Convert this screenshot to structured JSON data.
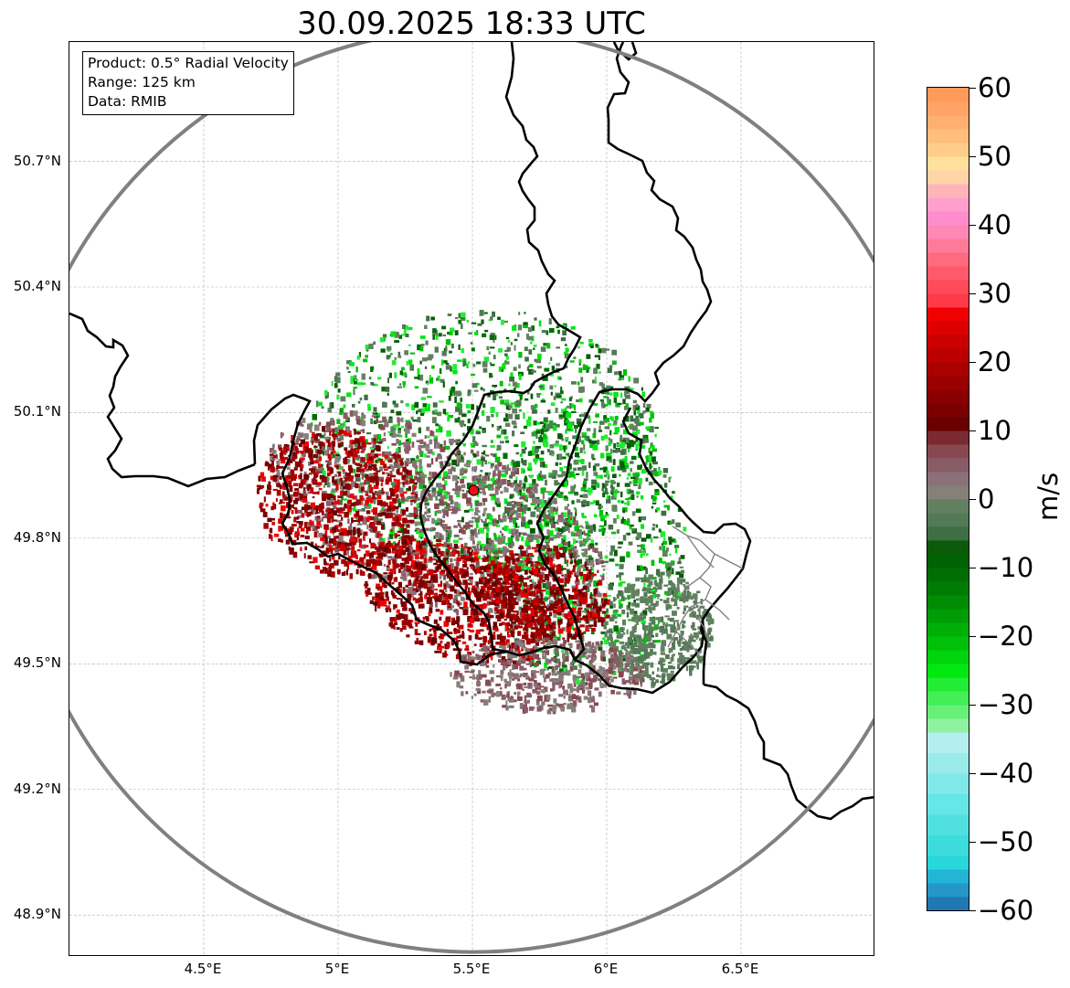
{
  "title": "30.09.2025 18:33 UTC",
  "info_box": {
    "line1": "Product: 0.5° Radial Velocity",
    "line2": "Range: 125 km",
    "line3": "Data: RMIB"
  },
  "map": {
    "extent": {
      "lon": [
        4.0,
        7.0
      ],
      "lat": [
        48.8,
        50.985
      ]
    },
    "radar_site": {
      "lon": 5.505,
      "lat": 49.914
    },
    "latitude_ticks": [
      {
        "value": 50.7,
        "label": "50.7°N"
      },
      {
        "value": 50.4,
        "label": "50.4°N"
      },
      {
        "value": 50.1,
        "label": "50.1°N"
      },
      {
        "value": 49.8,
        "label": "49.8°N"
      },
      {
        "value": 49.5,
        "label": "49.5°N"
      },
      {
        "value": 49.2,
        "label": "49.2°N"
      },
      {
        "value": 48.9,
        "label": "48.9°N"
      }
    ],
    "longitude_ticks": [
      {
        "value": 4.5,
        "label": "4.5°E"
      },
      {
        "value": 5.0,
        "label": "5°E"
      },
      {
        "value": 5.5,
        "label": "5.5°E"
      },
      {
        "value": 6.0,
        "label": "6°E"
      },
      {
        "value": 6.5,
        "label": "6.5°E"
      }
    ],
    "range_ring_color": "#808080",
    "border_color": "#000000",
    "sub_border_color": "#808080"
  },
  "colorbar": {
    "unit": "m/s",
    "min": -60,
    "max": 60,
    "ticks": [
      {
        "value": 60,
        "label": "60"
      },
      {
        "value": 50,
        "label": "50"
      },
      {
        "value": 40,
        "label": "40"
      },
      {
        "value": 30,
        "label": "30"
      },
      {
        "value": 20,
        "label": "20"
      },
      {
        "value": 10,
        "label": "10"
      },
      {
        "value": 0,
        "label": "0"
      },
      {
        "value": -10,
        "label": "−10"
      },
      {
        "value": -20,
        "label": "−20"
      },
      {
        "value": -30,
        "label": "−30"
      },
      {
        "value": -40,
        "label": "−40"
      },
      {
        "value": -50,
        "label": "−50"
      },
      {
        "value": -60,
        "label": "−60"
      }
    ],
    "color_stops": [
      {
        "from": -60,
        "to": -58,
        "color": "#1f77b4"
      },
      {
        "from": -58,
        "to": -56,
        "color": "#2596c8"
      },
      {
        "from": -56,
        "to": -54,
        "color": "#22b5d6"
      },
      {
        "from": -54,
        "to": -52,
        "color": "#28d6dc"
      },
      {
        "from": -52,
        "to": -49,
        "color": "#3cdcdc"
      },
      {
        "from": -49,
        "to": -46,
        "color": "#50e0e0"
      },
      {
        "from": -46,
        "to": -43,
        "color": "#66e6e6"
      },
      {
        "from": -43,
        "to": -40,
        "color": "#80e8e8"
      },
      {
        "from": -40,
        "to": -37,
        "color": "#9aeaea"
      },
      {
        "from": -37,
        "to": -34,
        "color": "#b4eeee"
      },
      {
        "from": -34,
        "to": -32,
        "color": "#8ef2a0"
      },
      {
        "from": -32,
        "to": -30,
        "color": "#66f07a"
      },
      {
        "from": -30,
        "to": -28,
        "color": "#44ee55"
      },
      {
        "from": -28,
        "to": -26,
        "color": "#22ec33"
      },
      {
        "from": -26,
        "to": -24,
        "color": "#00e810"
      },
      {
        "from": -24,
        "to": -22,
        "color": "#00d40c"
      },
      {
        "from": -22,
        "to": -20,
        "color": "#00c00a"
      },
      {
        "from": -20,
        "to": -18,
        "color": "#00ae08"
      },
      {
        "from": -18,
        "to": -16,
        "color": "#009c06"
      },
      {
        "from": -16,
        "to": -14,
        "color": "#008c05"
      },
      {
        "from": -14,
        "to": -12,
        "color": "#007c04"
      },
      {
        "from": -12,
        "to": -10,
        "color": "#006e03"
      },
      {
        "from": -10,
        "to": -8,
        "color": "#006202"
      },
      {
        "from": -8,
        "to": -6,
        "color": "#0a5a0a"
      },
      {
        "from": -6,
        "to": -4,
        "color": "#3f6e44"
      },
      {
        "from": -4,
        "to": -2,
        "color": "#527a56"
      },
      {
        "from": -2,
        "to": 0,
        "color": "#62805f"
      },
      {
        "from": 0,
        "to": 2,
        "color": "#86807a"
      },
      {
        "from": 2,
        "to": 4,
        "color": "#8a7078"
      },
      {
        "from": 4,
        "to": 6,
        "color": "#885c66"
      },
      {
        "from": 6,
        "to": 8,
        "color": "#884850"
      },
      {
        "from": 8,
        "to": 10,
        "color": "#7a2a30"
      },
      {
        "from": 10,
        "to": 12,
        "color": "#6a0000"
      },
      {
        "from": 12,
        "to": 14,
        "color": "#7a0000"
      },
      {
        "from": 14,
        "to": 16,
        "color": "#8a0000"
      },
      {
        "from": 16,
        "to": 18,
        "color": "#9a0000"
      },
      {
        "from": 18,
        "to": 20,
        "color": "#aa0000"
      },
      {
        "from": 20,
        "to": 22,
        "color": "#ba0000"
      },
      {
        "from": 22,
        "to": 24,
        "color": "#ca0000"
      },
      {
        "from": 24,
        "to": 26,
        "color": "#dc0000"
      },
      {
        "from": 26,
        "to": 28,
        "color": "#f00000"
      },
      {
        "from": 28,
        "to": 30,
        "color": "#ff3a48"
      },
      {
        "from": 30,
        "to": 32,
        "color": "#ff4a5a"
      },
      {
        "from": 32,
        "to": 34,
        "color": "#ff5a6c"
      },
      {
        "from": 34,
        "to": 36,
        "color": "#ff6a80"
      },
      {
        "from": 36,
        "to": 38,
        "color": "#ff7a98"
      },
      {
        "from": 38,
        "to": 40,
        "color": "#ff88b4"
      },
      {
        "from": 40,
        "to": 42,
        "color": "#ff8ccc"
      },
      {
        "from": 42,
        "to": 44,
        "color": "#ffa0cc"
      },
      {
        "from": 44,
        "to": 46,
        "color": "#ffb4b8"
      },
      {
        "from": 46,
        "to": 48,
        "color": "#ffd4a8"
      },
      {
        "from": 48,
        "to": 50,
        "color": "#ffe09c"
      },
      {
        "from": 50,
        "to": 52,
        "color": "#ffcc8a"
      },
      {
        "from": 52,
        "to": 54,
        "color": "#ffbe7c"
      },
      {
        "from": 54,
        "to": 56,
        "color": "#ffb070"
      },
      {
        "from": 56,
        "to": 58,
        "color": "#ffa464"
      },
      {
        "from": 58,
        "to": 60,
        "color": "#ff9a5a"
      }
    ]
  }
}
